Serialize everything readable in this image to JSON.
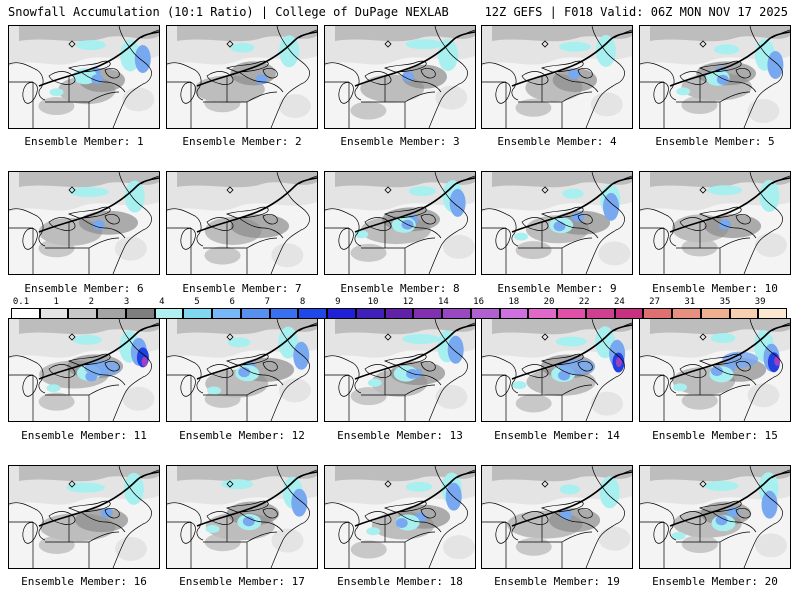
{
  "header": {
    "left": "Snowfall Accumulation (10:1 Ratio) | College of DuPage NEXLAB",
    "right": "12Z GEFS | F018 Valid: 06Z MON NOV 17 2025"
  },
  "panels": [
    {
      "label": "Ensemble Member: 1",
      "intensity": 2
    },
    {
      "label": "Ensemble Member: 2",
      "intensity": 1
    },
    {
      "label": "Ensemble Member: 3",
      "intensity": 1
    },
    {
      "label": "Ensemble Member: 4",
      "intensity": 1
    },
    {
      "label": "Ensemble Member: 5",
      "intensity": 2
    },
    {
      "label": "Ensemble Member: 6",
      "intensity": 1
    },
    {
      "label": "Ensemble Member: 7",
      "intensity": 0
    },
    {
      "label": "Ensemble Member: 8",
      "intensity": 2
    },
    {
      "label": "Ensemble Member: 9",
      "intensity": 2
    },
    {
      "label": "Ensemble Member: 10",
      "intensity": 1
    },
    {
      "label": "Ensemble Member: 11",
      "intensity": 3
    },
    {
      "label": "Ensemble Member: 12",
      "intensity": 2
    },
    {
      "label": "Ensemble Member: 13",
      "intensity": 2
    },
    {
      "label": "Ensemble Member: 14",
      "intensity": 3
    },
    {
      "label": "Ensemble Member: 15",
      "intensity": 3
    },
    {
      "label": "Ensemble Member: 16",
      "intensity": 1
    },
    {
      "label": "Ensemble Member: 17",
      "intensity": 2
    },
    {
      "label": "Ensemble Member: 18",
      "intensity": 2
    },
    {
      "label": "Ensemble Member: 19",
      "intensity": 1
    },
    {
      "label": "Ensemble Member: 20",
      "intensity": 2
    }
  ],
  "colorbar": {
    "ticks": [
      "0.1",
      "1",
      "2",
      "3",
      "4",
      "5",
      "6",
      "7",
      "8",
      "9",
      "10",
      "12",
      "14",
      "16",
      "18",
      "20",
      "22",
      "24",
      "27",
      "31",
      "35",
      "39"
    ],
    "colors": [
      "#ffffff",
      "#e4e4e4",
      "#c8c8c8",
      "#a4a4a4",
      "#7e7e7e",
      "#b0f0f0",
      "#80d8f0",
      "#78b8f8",
      "#5890f0",
      "#3870f0",
      "#2048e8",
      "#2020d8",
      "#4020b8",
      "#6020a8",
      "#8030b0",
      "#9848c0",
      "#b060d0",
      "#d070e0",
      "#e068c8",
      "#e050a8",
      "#d04090",
      "#c83080",
      "#e07070",
      "#e89080",
      "#f0b090",
      "#f8d0b0",
      "#fce8d0"
    ]
  },
  "colors": {
    "snow_light": "#a8f0f0",
    "snow_mid": "#78a8f0",
    "snow_heavy": "#2040e0",
    "snow_extreme": "#a040c0",
    "gray_light": "#e4e4e4",
    "gray_mid": "#bdbdbd",
    "gray_dark": "#8c8c8c"
  }
}
